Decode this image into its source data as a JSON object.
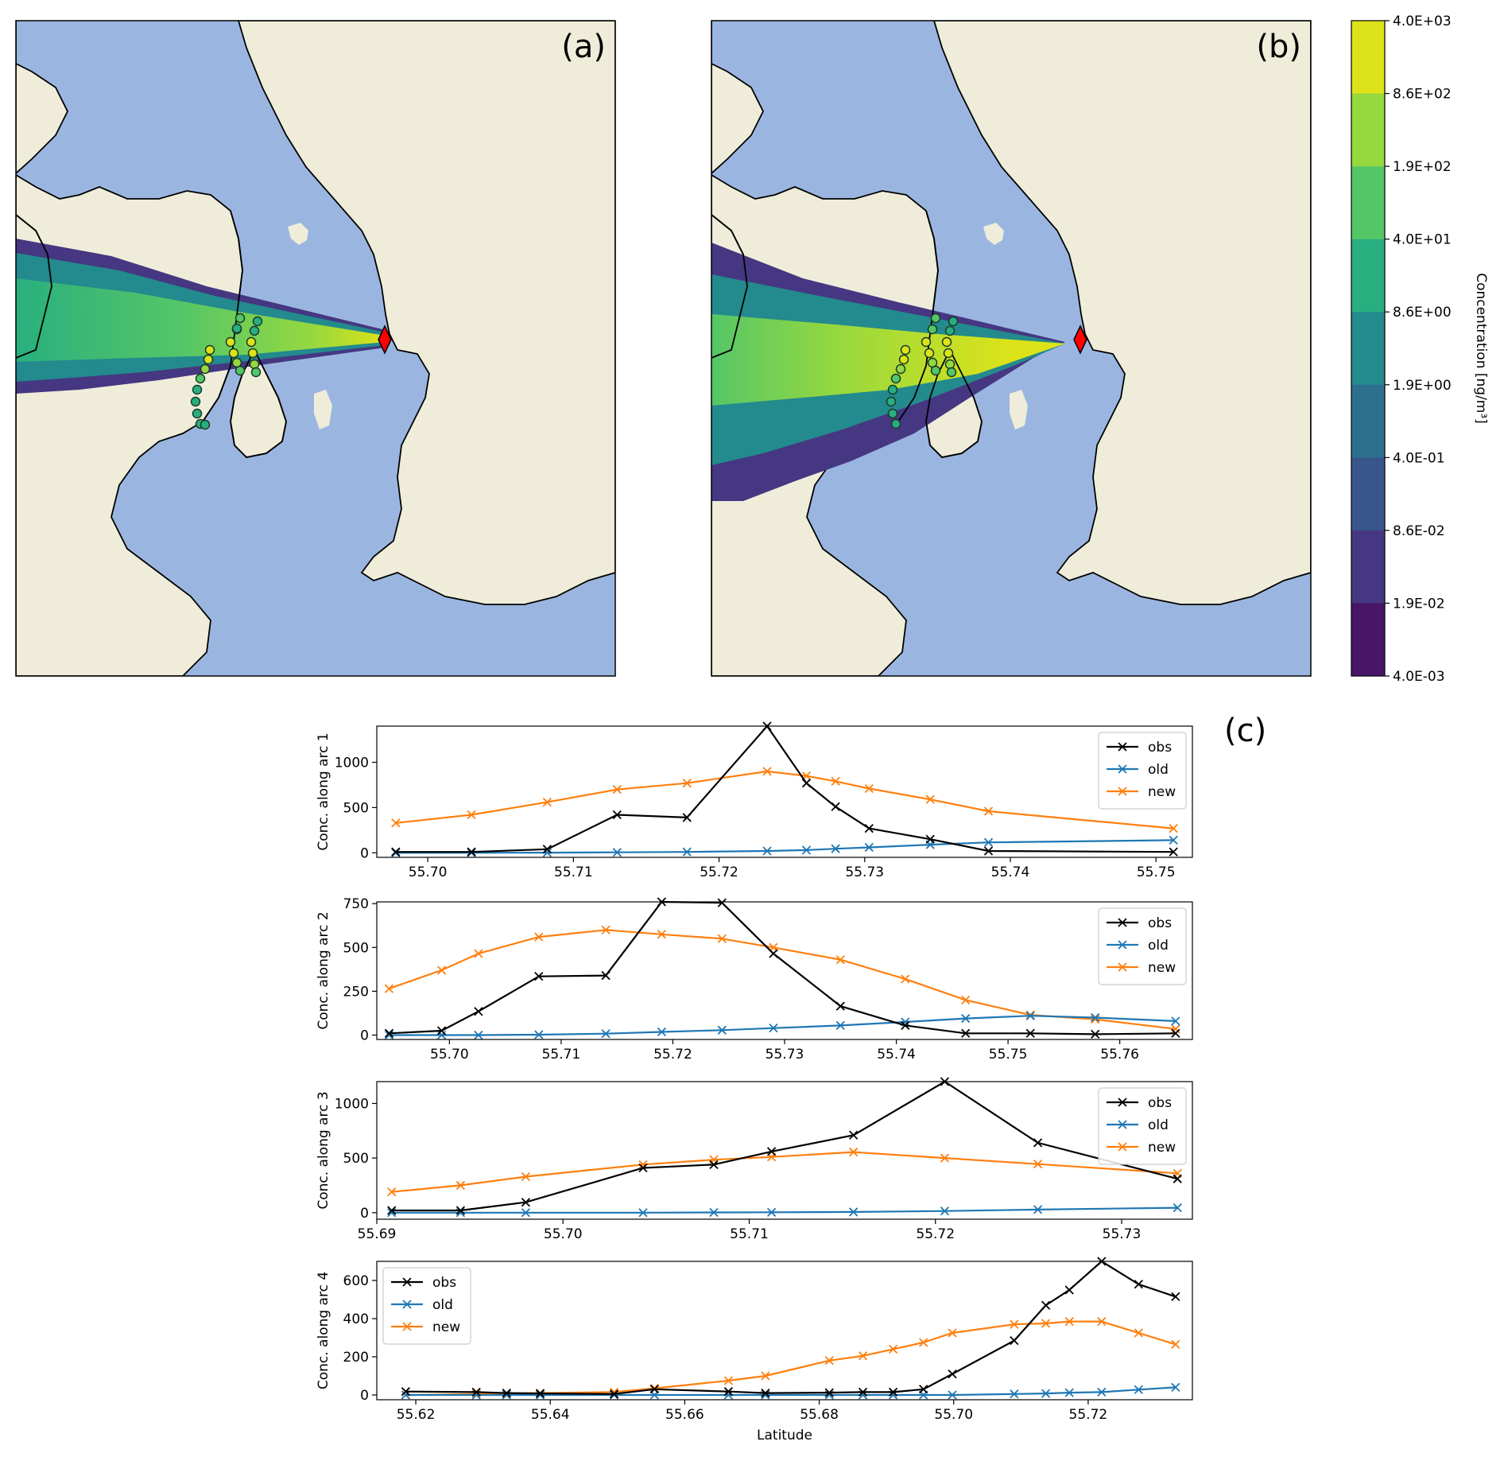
{
  "panels": {
    "a": {
      "label": "(a)"
    },
    "b": {
      "label": "(b)"
    },
    "c": {
      "label": "(c)"
    }
  },
  "colors": {
    "land": "#efedda",
    "sea": "#9ab6e0",
    "obs": "#000000",
    "old": "#1f77b4",
    "new": "#ff7f0e",
    "source_marker": "#ff0000"
  },
  "colorbar": {
    "label": "Concentration [ng/m³]",
    "ticks": [
      "4.0E+03",
      "8.6E+02",
      "1.9E+02",
      "4.0E+01",
      "8.6E+00",
      "1.9E+00",
      "4.0E-01",
      "8.6E-02",
      "1.9E-02",
      "4.0E-03"
    ],
    "colors": [
      "#dde318",
      "#95d840",
      "#55c667",
      "#29af7f",
      "#238a8d",
      "#2d708e",
      "#39568c",
      "#453781",
      "#481567"
    ]
  },
  "legend": [
    "obs",
    "old",
    "new"
  ],
  "chart_data": [
    {
      "type": "line",
      "ylabel": "Conc. along arc 1",
      "xlabel": "",
      "xlim": [
        55.6965,
        55.7525
      ],
      "ylim": [
        -50,
        1400
      ],
      "xticks": [
        "55.70",
        "55.71",
        "55.72",
        "55.73",
        "55.74",
        "55.75"
      ],
      "yticks": [
        "0",
        "500",
        "1000"
      ],
      "legend_position": "upper right",
      "series": [
        {
          "name": "obs",
          "x": [
            55.6978,
            55.703,
            55.7082,
            55.713,
            55.7178,
            55.7233,
            55.726,
            55.728,
            55.7303,
            55.7345,
            55.7385,
            55.7512
          ],
          "y": [
            10,
            10,
            40,
            420,
            390,
            1400,
            770,
            510,
            270,
            150,
            20,
            10
          ]
        },
        {
          "name": "old",
          "x": [
            55.6978,
            55.703,
            55.7082,
            55.713,
            55.7178,
            55.7233,
            55.726,
            55.728,
            55.7303,
            55.7345,
            55.7385,
            55.7512
          ],
          "y": [
            0,
            0,
            2,
            5,
            10,
            20,
            30,
            45,
            60,
            90,
            115,
            140
          ]
        },
        {
          "name": "new",
          "x": [
            55.6978,
            55.703,
            55.7082,
            55.713,
            55.7178,
            55.7233,
            55.726,
            55.728,
            55.7303,
            55.7345,
            55.7385,
            55.7512
          ],
          "y": [
            330,
            420,
            560,
            700,
            770,
            900,
            850,
            790,
            710,
            590,
            460,
            270
          ]
        }
      ]
    },
    {
      "type": "line",
      "ylabel": "Conc. along arc 2",
      "xlabel": "",
      "xlim": [
        55.6935,
        55.7665
      ],
      "ylim": [
        -25,
        760
      ],
      "xticks": [
        "55.70",
        "55.71",
        "55.72",
        "55.73",
        "55.74",
        "55.75",
        "55.76"
      ],
      "yticks": [
        "0",
        "250",
        "500",
        "750"
      ],
      "legend_position": "upper right",
      "series": [
        {
          "name": "obs",
          "x": [
            55.6946,
            55.6993,
            55.7026,
            55.708,
            55.714,
            55.719,
            55.7244,
            55.729,
            55.735,
            55.7408,
            55.7462,
            55.752,
            55.7578,
            55.765
          ],
          "y": [
            10,
            25,
            135,
            335,
            340,
            760,
            755,
            465,
            165,
            55,
            10,
            10,
            5,
            10
          ]
        },
        {
          "name": "old",
          "x": [
            55.6946,
            55.6993,
            55.7026,
            55.708,
            55.714,
            55.719,
            55.7244,
            55.729,
            55.735,
            55.7408,
            55.7462,
            55.752,
            55.7578,
            55.765
          ],
          "y": [
            0,
            0,
            0,
            2,
            8,
            18,
            28,
            40,
            55,
            75,
            95,
            110,
            100,
            80
          ]
        },
        {
          "name": "new",
          "x": [
            55.6946,
            55.6993,
            55.7026,
            55.708,
            55.714,
            55.719,
            55.7244,
            55.729,
            55.735,
            55.7408,
            55.7462,
            55.752,
            55.7578,
            55.765
          ],
          "y": [
            265,
            370,
            465,
            560,
            600,
            575,
            550,
            500,
            430,
            320,
            200,
            115,
            90,
            35
          ]
        }
      ]
    },
    {
      "type": "line",
      "ylabel": "Conc. along arc 3",
      "xlabel": "",
      "xlim": [
        55.69,
        55.7338
      ],
      "ylim": [
        -60,
        1200
      ],
      "xticks": [
        "55.69",
        "55.70",
        "55.71",
        "55.72",
        "55.73"
      ],
      "yticks": [
        "0",
        "500",
        "1000"
      ],
      "legend_position": "upper right",
      "series": [
        {
          "name": "obs",
          "x": [
            55.6908,
            55.6945,
            55.698,
            55.7043,
            55.7081,
            55.7112,
            55.7156,
            55.7205,
            55.7255,
            55.733
          ],
          "y": [
            20,
            20,
            95,
            410,
            440,
            560,
            710,
            1200,
            640,
            310
          ]
        },
        {
          "name": "old",
          "x": [
            55.6908,
            55.6945,
            55.698,
            55.7043,
            55.7081,
            55.7112,
            55.7156,
            55.7205,
            55.7255,
            55.733
          ],
          "y": [
            0,
            0,
            0,
            0,
            2,
            3,
            6,
            15,
            28,
            45
          ]
        },
        {
          "name": "new",
          "x": [
            55.6908,
            55.6945,
            55.698,
            55.7043,
            55.7081,
            55.7112,
            55.7156,
            55.7205,
            55.7255,
            55.733
          ],
          "y": [
            190,
            250,
            330,
            440,
            485,
            510,
            555,
            500,
            445,
            360
          ]
        }
      ]
    },
    {
      "type": "line",
      "ylabel": "Conc. along arc 4",
      "xlabel": "Latitude",
      "xlim": [
        55.6142,
        55.7355
      ],
      "ylim": [
        -25,
        700
      ],
      "xticks": [
        "55.62",
        "55.64",
        "55.66",
        "55.68",
        "55.70",
        "55.72"
      ],
      "yticks": [
        "0",
        "200",
        "400",
        "600"
      ],
      "legend_position": "upper left",
      "series": [
        {
          "name": "obs",
          "x": [
            55.6185,
            55.629,
            55.6335,
            55.6385,
            55.6495,
            55.6555,
            55.6665,
            55.672,
            55.6815,
            55.6865,
            55.691,
            55.6955,
            55.6998,
            55.709,
            55.7137,
            55.7172,
            55.722,
            55.7275,
            55.733
          ],
          "y": [
            18,
            15,
            10,
            8,
            5,
            30,
            18,
            10,
            12,
            15,
            15,
            30,
            110,
            285,
            470,
            550,
            700,
            580,
            515
          ]
        },
        {
          "name": "old",
          "x": [
            55.6185,
            55.629,
            55.6335,
            55.6385,
            55.6495,
            55.6555,
            55.6665,
            55.672,
            55.6815,
            55.6865,
            55.691,
            55.6955,
            55.6998,
            55.709,
            55.7137,
            55.7172,
            55.722,
            55.7275,
            55.733
          ],
          "y": [
            0,
            0,
            0,
            0,
            0,
            0,
            0,
            0,
            0,
            0,
            0,
            0,
            0,
            5,
            8,
            12,
            15,
            28,
            40
          ]
        },
        {
          "name": "new",
          "x": [
            55.6185,
            55.629,
            55.6335,
            55.6385,
            55.6495,
            55.6555,
            55.6665,
            55.672,
            55.6815,
            55.6865,
            55.691,
            55.6955,
            55.6998,
            55.709,
            55.7137,
            55.7172,
            55.722,
            55.7275,
            55.733
          ],
          "y": [
            0,
            5,
            8,
            10,
            15,
            35,
            75,
            100,
            180,
            205,
            240,
            275,
            325,
            370,
            375,
            385,
            385,
            325,
            265
          ]
        }
      ]
    }
  ]
}
